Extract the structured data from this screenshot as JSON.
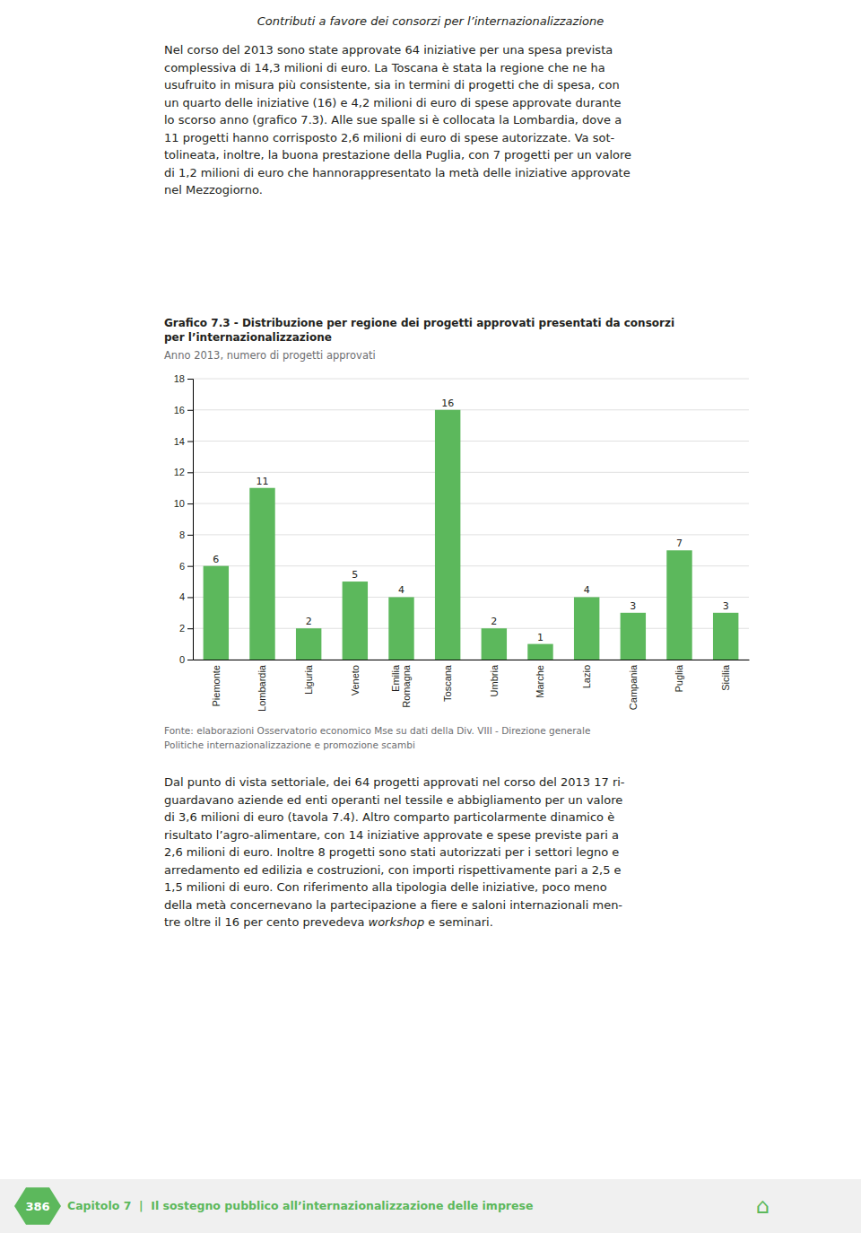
{
  "page_title": "Contributi a favore dei consorzi per l’internazionalizzazione",
  "para1": [
    "Nel corso del 2013 sono state approvate 64 iniziative per una spesa prevista",
    "complessiva di 14,3 milioni di euro. La Toscana è stata la regione che ne ha",
    "usufruito in misura più consistente, sia in termini di progetti che di spesa, con",
    "un quarto delle iniziative (16) e 4,2 milioni di euro di spese approvate durante",
    "lo scorso anno (grafico 7.3). Alle sue spalle si è collocata la Lombardia, dove a",
    "11 progetti hanno corrisposto 2,6 milioni di euro di spese autorizzate. Va sot-",
    "tolineata, inoltre, la buona prestazione della Puglia, con 7 progetti per un valore",
    "di 1,2 milioni di euro che hannorappresentato la metà delle iniziative approvate",
    "nel Mezzogiorno."
  ],
  "chart_data": {
    "type": "bar",
    "title": "Grafico 7.3 - Distribuzione per regione dei progetti approvati presentati da consorzi\nper l’internazionalizzazione",
    "subtitle": "Anno 2013, numero di progetti approvati",
    "categories": [
      "Piemonte",
      "Lombardia",
      "Liguria",
      "Veneto",
      "Emilia\nRomagna",
      "Toscana",
      "Umbria",
      "Marche",
      "Lazio",
      "Campania",
      "Puglia",
      "Sicilia"
    ],
    "values": [
      6,
      11,
      2,
      5,
      4,
      16,
      2,
      1,
      4,
      3,
      7,
      3
    ],
    "color": "#5cb85c",
    "ylim": [
      0,
      18
    ],
    "yticks": [
      0,
      2,
      4,
      6,
      8,
      10,
      12,
      14,
      16,
      18
    ],
    "grid": true,
    "data_labels": true,
    "source": "Fonte: elaborazioni Osservatorio economico Mse su dati della Div. VIII - Direzione generale\nPolitiche internazionalizzazione e promozione scambi"
  },
  "para2": [
    "Dal punto di vista settoriale, dei 64 progetti approvati nel corso del 2013 17 ri-",
    "guardavano aziende ed enti operanti nel tessile e abbigliamento per un valore",
    "di 3,6 milioni di euro (tavola 7.4). Altro comparto particolarmente dinamico è",
    "risultato l’agro-alimentare, con 14 iniziative approvate e spese previste pari a",
    "2,6 milioni di euro. Inoltre 8 progetti sono stati autorizzati per i settori legno e",
    "arredamento ed edilizia e costruzioni, con importi rispettivamente pari a 2,5 e",
    "1,5 milioni di euro. Con riferimento alla tipologia delle iniziative, poco meno",
    "della metà concernevano la partecipazione a fiere e saloni internazionali men-"
  ],
  "para2_last": [
    "tre oltre il 16 per cento prevedeva ",
    "workshop",
    " e seminari."
  ],
  "footer": {
    "number": "386",
    "text": "Capitolo 7  |  Il sostegno pubblico all’internazionalizzazione delle imprese",
    "icon": "⌂",
    "color": "#5cb85c",
    "background": "#f0f0f0"
  }
}
